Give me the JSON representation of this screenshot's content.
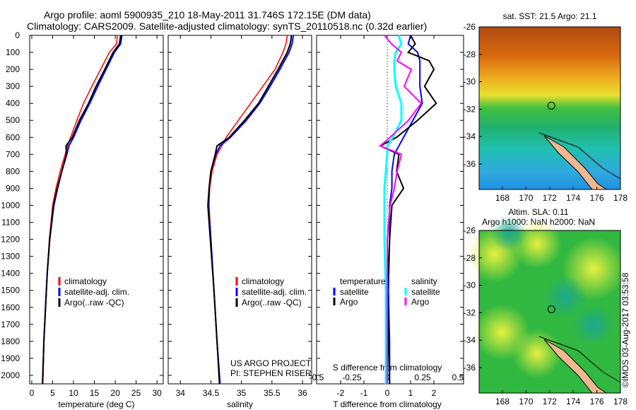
{
  "title": {
    "line1": "Argo profile: aoml 5900935_210 18-May-2011 31.746S 172.15E (DM data)",
    "line2": "Climatology: CARS2009. Satellite-adjusted climatology: synTS_20110518.nc (0.32d earlier)"
  },
  "credit": "©IMOS 03-Aug-2017 03:53:58",
  "project": {
    "line1": "US ARGO PROJECT",
    "line2": "PI: STEPHEN RISER"
  },
  "colors": {
    "climatology": "#ff0000",
    "satellite": "#0000ff",
    "argo": "#000000",
    "sal_sat": "#00ffff",
    "sal_argo": "#ff00ff"
  },
  "chart_data": [
    {
      "type": "line",
      "name": "temperature",
      "xlabel": "temperature (deg C)",
      "xlim": [
        -0.5,
        31.5
      ],
      "xticks": [
        0,
        5,
        10,
        15,
        20,
        25,
        30
      ],
      "ylim": [
        0,
        2050
      ],
      "yticks": [
        0,
        100,
        200,
        300,
        400,
        500,
        600,
        700,
        800,
        900,
        1000,
        1100,
        1200,
        1300,
        1400,
        1500,
        1600,
        1700,
        1800,
        1900,
        2000
      ],
      "legend": [
        "climatology",
        "satellite-adj. clim.",
        "Argo(..raw -QC)"
      ],
      "depth": [
        0,
        50,
        100,
        200,
        300,
        400,
        500,
        600,
        650,
        700,
        800,
        900,
        1000,
        1200,
        1400,
        1600,
        1800,
        2050
      ],
      "series": [
        {
          "name": "climatology",
          "values": [
            20.5,
            20.3,
            18.6,
            16.5,
            14.4,
            12.4,
            10.8,
            9.3,
            8.6,
            8.0,
            6.8,
            5.8,
            5.0,
            4.2,
            3.7,
            3.3,
            2.9,
            2.5
          ]
        },
        {
          "name": "satellite-adj. clim.",
          "values": [
            21.6,
            21.3,
            19.8,
            17.8,
            15.8,
            13.9,
            11.8,
            10.0,
            8.9,
            8.4,
            7.2,
            6.2,
            5.3,
            4.3,
            3.7,
            3.3,
            2.9,
            2.6
          ]
        },
        {
          "name": "Argo(..raw -QC)",
          "values": [
            21.3,
            21.0,
            19.5,
            17.5,
            15.4,
            13.6,
            11.4,
            9.7,
            8.2,
            8.3,
            7.2,
            6.1,
            5.2,
            4.3,
            3.7,
            3.3,
            2.9,
            2.6
          ]
        }
      ]
    },
    {
      "type": "line",
      "name": "salinity",
      "xlabel": "salinity",
      "xlim": [
        33.8,
        36.15
      ],
      "xticks": [
        34,
        34.5,
        35,
        35.5,
        36
      ],
      "ylim": [
        0,
        2050
      ],
      "legend": [
        "climatology",
        "satellite-adj. clim.",
        "Argo(..raw -QC)"
      ],
      "depth": [
        0,
        50,
        100,
        200,
        300,
        400,
        500,
        600,
        650,
        700,
        800,
        900,
        1000,
        1200,
        1500,
        1800,
        2050
      ],
      "series": [
        {
          "name": "climatology",
          "values": [
            35.75,
            35.73,
            35.68,
            35.55,
            35.35,
            35.15,
            34.95,
            34.75,
            34.68,
            34.6,
            34.52,
            34.48,
            34.47,
            34.5,
            34.55,
            34.6,
            34.65
          ]
        },
        {
          "name": "satellite-adj. clim.",
          "values": [
            35.85,
            35.83,
            35.78,
            35.63,
            35.47,
            35.3,
            35.08,
            34.82,
            34.65,
            34.58,
            34.5,
            34.47,
            34.46,
            34.5,
            34.55,
            34.6,
            34.65
          ]
        },
        {
          "name": "Argo(..raw -QC)",
          "values": [
            35.82,
            35.8,
            35.75,
            35.6,
            35.44,
            35.28,
            35.05,
            34.8,
            34.6,
            34.57,
            34.5,
            34.47,
            34.45,
            34.49,
            34.55,
            34.6,
            34.64
          ]
        }
      ]
    },
    {
      "type": "line",
      "name": "difference",
      "xlabel": "T difference from climatology",
      "x2label": "S difference from climatology",
      "xlim": [
        -3,
        3
      ],
      "xticks": [
        -2,
        -1,
        0,
        1,
        2
      ],
      "x2ticks": [
        -0.5,
        -0.25,
        0,
        0.25,
        0.5
      ],
      "legend": {
        "temperature": "temperature",
        "salinity": "salinity",
        "satellite": "satellite",
        "argo": "Argo"
      },
      "depth": [
        0,
        50,
        100,
        150,
        200,
        300,
        400,
        500,
        600,
        650,
        700,
        800,
        900,
        1000,
        1200,
        1500,
        1800,
        2050
      ],
      "series": [
        {
          "name": "T satellite",
          "values": [
            1.0,
            0.9,
            1.3,
            1.4,
            1.4,
            1.4,
            1.5,
            1.1,
            0.7,
            0.5,
            0.3,
            0.2,
            0.2,
            0.1,
            0.1,
            0.05,
            0.1,
            0.1
          ]
        },
        {
          "name": "T Argo",
          "values": [
            1.0,
            1.2,
            0.9,
            1.8,
            2.0,
            1.6,
            2.1,
            1.3,
            0.4,
            -0.3,
            0.5,
            0.4,
            0.7,
            0.2,
            0.1,
            0.0,
            0.05,
            0.1
          ]
        },
        {
          "name": "S satellite",
          "values": [
            0.08,
            0.1,
            0.06,
            0.05,
            0.05,
            0.06,
            0.1,
            0.1,
            0.04,
            0.0,
            0.0,
            -0.01,
            -0.02,
            -0.02,
            -0.02,
            -0.01,
            -0.01,
            -0.01
          ]
        },
        {
          "name": "S Argo",
          "values": [
            -0.02,
            0.03,
            0.1,
            0.07,
            0.17,
            0.12,
            0.24,
            0.15,
            0.02,
            -0.05,
            0.1,
            0.07,
            0.05,
            0.02,
            0.0,
            0.0,
            0.0,
            0.0
          ]
        }
      ]
    },
    {
      "type": "heatmap",
      "name": "sst-map",
      "title": "sat. SST: 21.5 Argo: 21.1",
      "xticks": [
        168,
        170,
        172,
        174,
        176,
        178
      ],
      "yticks": [
        -26,
        -28,
        -30,
        -32,
        -34,
        -36
      ],
      "argo_position": [
        172.15,
        -31.746
      ]
    },
    {
      "type": "heatmap",
      "name": "sla-map",
      "title1": "Altim. SLA: 0.11",
      "title2": "Argo h1000: NaN h2000: NaN",
      "xticks": [
        168,
        170,
        172,
        174,
        176,
        178
      ],
      "yticks": [
        -26,
        -28,
        -30,
        -32,
        -34,
        -36
      ],
      "argo_position": [
        172.15,
        -31.746
      ]
    }
  ]
}
